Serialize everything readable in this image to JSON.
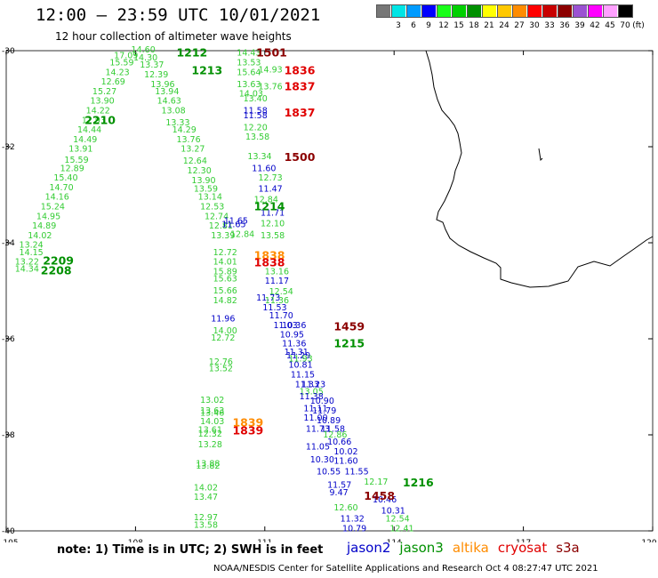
{
  "header": {
    "title": "12:00 – 23:59 UTC 10/01/2021",
    "subtitle": "12 hour collection of altimeter wave heights"
  },
  "scale": {
    "unit": "(ft)",
    "bins": [
      {
        "color": "#777777",
        "label": ""
      },
      {
        "color": "#00e5e5",
        "label": "3"
      },
      {
        "color": "#009bff",
        "label": "6"
      },
      {
        "color": "#0000ff",
        "label": "9"
      },
      {
        "color": "#19ff19",
        "label": "12"
      },
      {
        "color": "#00d000",
        "label": "15"
      },
      {
        "color": "#009000",
        "label": "18"
      },
      {
        "color": "#ffff00",
        "label": "21"
      },
      {
        "color": "#ffc800",
        "label": "24"
      },
      {
        "color": "#ff8c00",
        "label": "27"
      },
      {
        "color": "#ff0000",
        "label": "30"
      },
      {
        "color": "#c80000",
        "label": "33"
      },
      {
        "color": "#8c0000",
        "label": "36"
      },
      {
        "color": "#9b52d2",
        "label": "39"
      },
      {
        "color": "#ff00ff",
        "label": "42"
      },
      {
        "color": "#ffa0ff",
        "label": "45"
      },
      {
        "color": "#000000",
        "label": "70"
      }
    ]
  },
  "axes": {
    "lon_ticks": [
      "105",
      "108",
      "111",
      "114",
      "117",
      "120"
    ],
    "lat_ticks": [
      "-30",
      "-32",
      "-34",
      "-36",
      "-38",
      "-40"
    ]
  },
  "satellites": [
    {
      "name": "jason2",
      "color": "#0000c8"
    },
    {
      "name": "jason3",
      "color": "#009000"
    },
    {
      "name": "altika",
      "color": "#ff8c00"
    },
    {
      "name": "cryosat",
      "color": "#e00000"
    },
    {
      "name": "s3a",
      "color": "#8b0000"
    }
  ],
  "pass_times": [
    {
      "t": "1501",
      "sat": "s3a",
      "lon": 110.8,
      "lat": -30.05
    },
    {
      "t": "1212",
      "sat": "jason3",
      "lon": 108.95,
      "lat": -30.05
    },
    {
      "t": "1213",
      "sat": "jason3",
      "lon": 109.3,
      "lat": -30.42
    },
    {
      "t": "1836",
      "sat": "cryosat",
      "lon": 111.45,
      "lat": -30.42
    },
    {
      "t": "1837",
      "sat": "cryosat",
      "lon": 111.45,
      "lat": -30.75
    },
    {
      "t": "1837",
      "sat": "cryosat",
      "lon": 111.45,
      "lat": -31.3
    },
    {
      "t": "2210",
      "sat": "jason3",
      "lon": 106.82,
      "lat": -31.45
    },
    {
      "t": "1500",
      "sat": "s3a",
      "lon": 111.45,
      "lat": -32.22
    },
    {
      "t": "1214",
      "sat": "jason3",
      "lon": 110.75,
      "lat": -33.25
    },
    {
      "t": "1838",
      "sat": "altika",
      "lon": 110.75,
      "lat": -34.27
    },
    {
      "t": "1838",
      "sat": "cryosat",
      "lon": 110.75,
      "lat": -34.42
    },
    {
      "t": "2209",
      "sat": "jason3",
      "lon": 105.85,
      "lat": -34.38
    },
    {
      "t": "2208",
      "sat": "jason3",
      "lon": 105.8,
      "lat": -34.58
    },
    {
      "t": "1459",
      "sat": "s3a",
      "lon": 112.6,
      "lat": -35.75
    },
    {
      "t": "1215",
      "sat": "jason3",
      "lon": 112.6,
      "lat": -36.1
    },
    {
      "t": "1839",
      "sat": "altika",
      "lon": 110.25,
      "lat": -37.75
    },
    {
      "t": "1839",
      "sat": "cryosat",
      "lon": 110.25,
      "lat": -37.92
    },
    {
      "t": "1216",
      "sat": "jason3",
      "lon": 114.2,
      "lat": -39.0
    },
    {
      "t": "1458",
      "sat": "s3a",
      "lon": 113.3,
      "lat": -39.28
    }
  ],
  "readings": [
    [
      "14.60",
      "lightgreen",
      107.9,
      -29.98
    ],
    [
      "17.09",
      "lightgreen",
      107.5,
      -30.1
    ],
    [
      "14.30",
      "lightgreen",
      107.95,
      -30.15
    ],
    [
      "15.59",
      "lightgreen",
      107.4,
      -30.25
    ],
    [
      "13.37",
      "lightgreen",
      108.1,
      -30.3
    ],
    [
      "14.23",
      "lightgreen",
      107.3,
      -30.45
    ],
    [
      "12.39",
      "lightgreen",
      108.2,
      -30.5
    ],
    [
      "12.69",
      "lightgreen",
      107.2,
      -30.65
    ],
    [
      "13.96",
      "lightgreen",
      108.35,
      -30.7
    ],
    [
      "15.27",
      "lightgreen",
      107.0,
      -30.85
    ],
    [
      "13.94",
      "lightgreen",
      108.45,
      -30.85
    ],
    [
      "13.90",
      "lightgreen",
      106.95,
      -31.05
    ],
    [
      "14.63",
      "lightgreen",
      108.5,
      -31.05
    ],
    [
      "14.22",
      "lightgreen",
      106.85,
      -31.25
    ],
    [
      "13.08",
      "lightgreen",
      108.6,
      -31.25
    ],
    [
      "12.93",
      "lightgreen",
      106.75,
      -31.45
    ],
    [
      "13.33",
      "lightgreen",
      108.7,
      -31.5
    ],
    [
      "14.44",
      "lightgreen",
      106.65,
      -31.65
    ],
    [
      "14.29",
      "lightgreen",
      108.85,
      -31.65
    ],
    [
      "14.49",
      "lightgreen",
      106.55,
      -31.85
    ],
    [
      "13.76",
      "lightgreen",
      108.95,
      -31.85
    ],
    [
      "13.91",
      "lightgreen",
      106.45,
      -32.05
    ],
    [
      "13.27",
      "lightgreen",
      109.05,
      -32.05
    ],
    [
      "15.59",
      "lightgreen",
      106.35,
      -32.28
    ],
    [
      "12.64",
      "lightgreen",
      109.1,
      -32.3
    ],
    [
      "12.89",
      "lightgreen",
      106.25,
      -32.45
    ],
    [
      "12.30",
      "lightgreen",
      109.2,
      -32.5
    ],
    [
      "15.40",
      "lightgreen",
      106.1,
      -32.65
    ],
    [
      "13.90",
      "lightgreen",
      109.3,
      -32.7
    ],
    [
      "14.70",
      "lightgreen",
      106.0,
      -32.85
    ],
    [
      "13.59",
      "lightgreen",
      109.35,
      -32.88
    ],
    [
      "14.16",
      "lightgreen",
      105.9,
      -33.05
    ],
    [
      "13.14",
      "lightgreen",
      109.45,
      -33.05
    ],
    [
      "15.24",
      "lightgreen",
      105.8,
      -33.25
    ],
    [
      "12.53",
      "lightgreen",
      109.5,
      -33.25
    ],
    [
      "14.95",
      "lightgreen",
      105.7,
      -33.45
    ],
    [
      "12.74",
      "lightgreen",
      109.6,
      -33.45
    ],
    [
      "14.89",
      "lightgreen",
      105.6,
      -33.65
    ],
    [
      "12.81",
      "lightgreen",
      109.7,
      -33.65
    ],
    [
      "14.02",
      "lightgreen",
      105.5,
      -33.85
    ],
    [
      "13.39",
      "lightgreen",
      109.75,
      -33.85
    ],
    [
      "13.24",
      "lightgreen",
      105.3,
      -34.05
    ],
    [
      "14.15",
      "lightgreen",
      105.3,
      -34.2
    ],
    [
      "12.72",
      "lightgreen",
      109.8,
      -34.2
    ],
    [
      "13.22",
      "lightgreen",
      105.2,
      -34.4
    ],
    [
      "14.01",
      "lightgreen",
      109.8,
      -34.4
    ],
    [
      "14.34",
      "lightgreen",
      105.2,
      -34.55
    ],
    [
      "15.89",
      "lightgreen",
      109.8,
      -34.6
    ],
    [
      "15.63",
      "lightgreen",
      109.8,
      -34.75
    ],
    [
      "15.66",
      "lightgreen",
      109.8,
      -35.0
    ],
    [
      "14.82",
      "lightgreen",
      109.8,
      -35.2
    ],
    [
      "11.96",
      "blue",
      109.75,
      -35.58
    ],
    [
      "14.00",
      "lightgreen",
      109.8,
      -35.83
    ],
    [
      "12.72",
      "lightgreen",
      109.75,
      -35.98
    ],
    [
      "12.76",
      "lightgreen",
      109.7,
      -36.48
    ],
    [
      "13.52",
      "lightgreen",
      109.7,
      -36.62
    ],
    [
      "13.02",
      "lightgreen",
      109.5,
      -37.28
    ],
    [
      "13.63",
      "lightgreen",
      109.5,
      -37.5
    ],
    [
      "13.46",
      "lightgreen",
      109.5,
      -37.55
    ],
    [
      "14.03",
      "lightgreen",
      109.5,
      -37.72
    ],
    [
      "13.61",
      "lightgreen",
      109.45,
      -37.9
    ],
    [
      "12.32",
      "lightgreen",
      109.45,
      -37.98
    ],
    [
      "13.28",
      "lightgreen",
      109.45,
      -38.2
    ],
    [
      "13.88",
      "lightgreen",
      109.4,
      -38.6
    ],
    [
      "13.82",
      "lightgreen",
      109.4,
      -38.65
    ],
    [
      "14.02",
      "lightgreen",
      109.35,
      -39.1
    ],
    [
      "13.47",
      "lightgreen",
      109.35,
      -39.3
    ],
    [
      "12.97",
      "lightgreen",
      109.35,
      -39.72
    ],
    [
      "13.58",
      "lightgreen",
      109.35,
      -39.88
    ],
    [
      "14.43",
      "lightgreen",
      110.35,
      -30.05
    ],
    [
      "13.53",
      "lightgreen",
      110.35,
      -30.25
    ],
    [
      "14.93",
      "lightgreen",
      110.85,
      -30.4
    ],
    [
      "15.64",
      "lightgreen",
      110.35,
      -30.45
    ],
    [
      "13.63",
      "lightgreen",
      110.35,
      -30.7
    ],
    [
      "13.76",
      "lightgreen",
      110.85,
      -30.75
    ],
    [
      "14.03",
      "lightgreen",
      110.4,
      -30.9
    ],
    [
      "13.40",
      "lightgreen",
      110.5,
      -31.0
    ],
    [
      "11.58",
      "blue",
      110.5,
      -31.25
    ],
    [
      "11.58",
      "blue",
      110.5,
      -31.35
    ],
    [
      "12.20",
      "lightgreen",
      110.5,
      -31.6
    ],
    [
      "13.58",
      "lightgreen",
      110.55,
      -31.8
    ],
    [
      "13.34",
      "lightgreen",
      110.6,
      -32.2
    ],
    [
      "11.60",
      "blue",
      110.7,
      -32.45
    ],
    [
      "12.73",
      "lightgreen",
      110.85,
      -32.65
    ],
    [
      "11.47",
      "blue",
      110.85,
      -32.88
    ],
    [
      "12.84",
      "lightgreen",
      110.75,
      -33.1
    ],
    [
      "11.71",
      "blue",
      110.9,
      -33.38
    ],
    [
      "11.65",
      "blue",
      110.05,
      -33.55
    ],
    [
      "11.65",
      "blue",
      110.0,
      -33.62
    ],
    [
      "12.10",
      "lightgreen",
      110.9,
      -33.6
    ],
    [
      "12.84",
      "lightgreen",
      110.2,
      -33.82
    ],
    [
      "13.58",
      "lightgreen",
      110.9,
      -33.85
    ],
    [
      "13.16",
      "lightgreen",
      111.0,
      -34.6
    ],
    [
      "11.17",
      "blue",
      111.0,
      -34.8
    ],
    [
      "12.54",
      "lightgreen",
      111.1,
      -35.02
    ],
    [
      "11.73",
      "blue",
      110.8,
      -35.15
    ],
    [
      "11.36",
      "lightgreen",
      111.0,
      -35.2
    ],
    [
      "11.53",
      "blue",
      110.95,
      -35.35
    ],
    [
      "11.70",
      "blue",
      111.1,
      -35.52
    ],
    [
      "11.03",
      "blue",
      111.2,
      -35.72
    ],
    [
      "10.36",
      "blue",
      111.4,
      -35.72
    ],
    [
      "10.95",
      "blue",
      111.35,
      -35.92
    ],
    [
      "11.36",
      "blue",
      111.4,
      -36.1
    ],
    [
      "11.31",
      "blue",
      111.45,
      -36.28
    ],
    [
      "11.29",
      "blue",
      111.5,
      -36.35
    ],
    [
      "11.93",
      "lightgreen",
      111.55,
      -36.42
    ],
    [
      "10.81",
      "blue",
      111.55,
      -36.55
    ],
    [
      "11.15",
      "blue",
      111.6,
      -36.75
    ],
    [
      "11.33",
      "blue",
      111.7,
      -36.95
    ],
    [
      "11.23",
      "blue",
      111.85,
      -36.95
    ],
    [
      "13.05",
      "lightgreen",
      111.8,
      -37.1
    ],
    [
      "11.38",
      "blue",
      111.8,
      -37.2
    ],
    [
      "10.90",
      "blue",
      112.05,
      -37.3
    ],
    [
      "11.11",
      "blue",
      111.9,
      -37.45
    ],
    [
      "11.79",
      "blue",
      112.1,
      -37.5
    ],
    [
      "11.00",
      "blue",
      111.9,
      -37.65
    ],
    [
      "10.89",
      "blue",
      112.2,
      -37.7
    ],
    [
      "11.73",
      "blue",
      111.95,
      -37.88
    ],
    [
      "11.58",
      "blue",
      112.3,
      -37.88
    ],
    [
      "12.86",
      "lightgreen",
      112.35,
      -38.0
    ],
    [
      "10.66",
      "blue",
      112.45,
      -38.15
    ],
    [
      "11.05",
      "blue",
      111.95,
      -38.25
    ],
    [
      "10.02",
      "blue",
      112.6,
      -38.35
    ],
    [
      "10.30",
      "blue",
      112.05,
      -38.52
    ],
    [
      "11.60",
      "blue",
      112.6,
      -38.55
    ],
    [
      "10.55",
      "blue",
      112.2,
      -38.77
    ],
    [
      "11.55",
      "blue",
      112.85,
      -38.77
    ],
    [
      "12.17",
      "lightgreen",
      113.3,
      -38.98
    ],
    [
      "11.57",
      "blue",
      112.45,
      -39.05
    ],
    [
      "9.47",
      "blue",
      112.5,
      -39.2
    ],
    [
      "10.46",
      "blue",
      113.5,
      -39.35
    ],
    [
      "12.60",
      "lightgreen",
      112.6,
      -39.52
    ],
    [
      "10.31",
      "blue",
      113.7,
      -39.58
    ],
    [
      "11.32",
      "blue",
      112.75,
      -39.75
    ],
    [
      "12.54",
      "lightgreen",
      113.8,
      -39.75
    ],
    [
      "10.79",
      "blue",
      112.8,
      -39.95
    ],
    [
      "12.41",
      "lightgreen",
      113.9,
      -39.95
    ]
  ],
  "footer": {
    "note": "note: 1) Time is in UTC; 2) SWH is in feet",
    "credit": "NOAA/NESDIS Center for Satellite Applications and Research   Oct  4 08:27:47 UTC 2021"
  }
}
